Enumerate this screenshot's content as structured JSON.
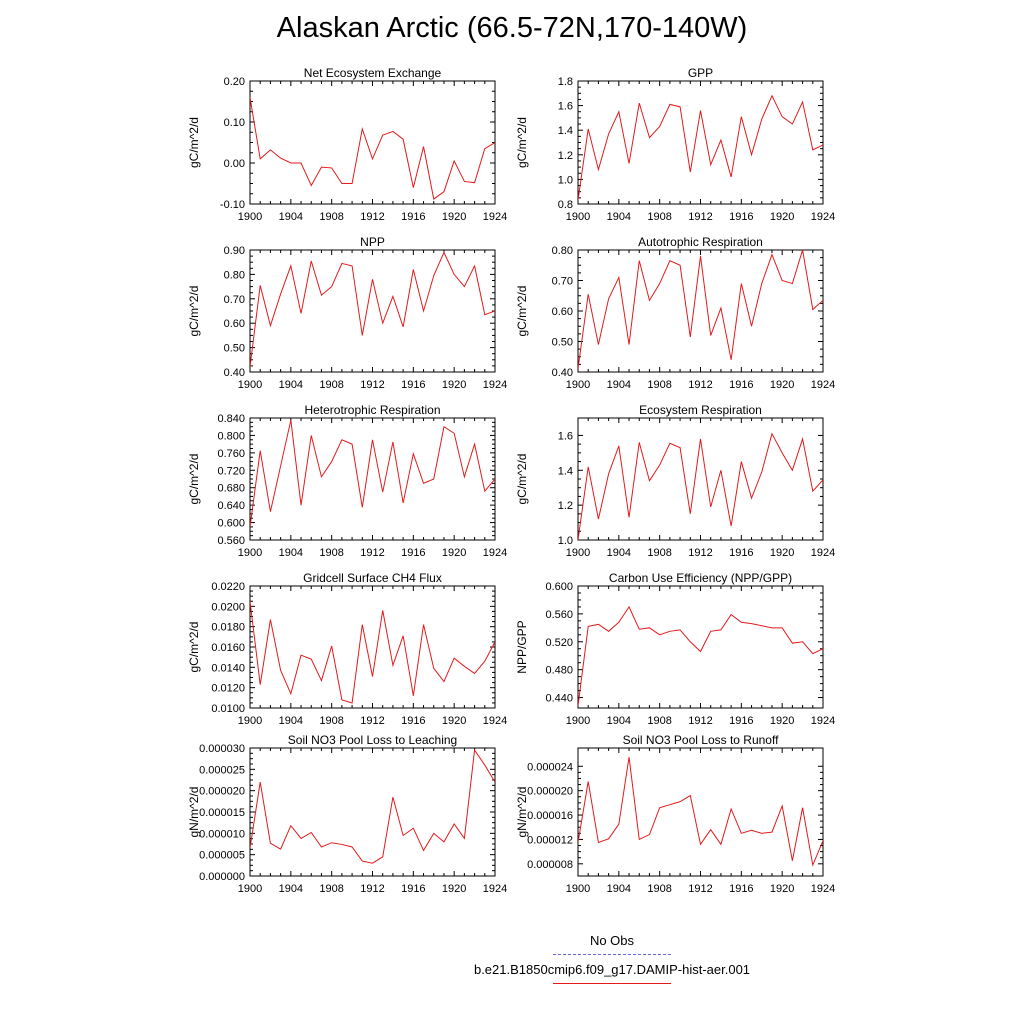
{
  "page": {
    "title": "Alaskan Arctic (66.5-72N,170-140W)"
  },
  "colors": {
    "series": "#e41a1c",
    "obs": "#6a6adc",
    "axis": "#000000"
  },
  "legend": {
    "obs_label": "No Obs",
    "model_label": "b.e21.B1850cmip6.f09_g17.DAMIP-hist-aer.001"
  },
  "chart_data": [
    {
      "type": "line",
      "title": "Net Ecosystem Exchange",
      "xlabel": "",
      "ylabel": "gC/m^2/d",
      "xlim": [
        1900,
        1924
      ],
      "ylim": [
        -0.1,
        0.2
      ],
      "xticks": [
        1900,
        1904,
        1908,
        1912,
        1916,
        1920,
        1924
      ],
      "yticks": [
        -0.1,
        0.0,
        0.1,
        0.2
      ],
      "ytick_labels": [
        "-0.10",
        "0.00",
        "0.10",
        "0.20"
      ],
      "series": [
        {
          "x": [
            1900,
            1901,
            1902,
            1903,
            1904,
            1905,
            1906,
            1907,
            1908,
            1909,
            1910,
            1911,
            1912,
            1913,
            1914,
            1915,
            1916,
            1917,
            1918,
            1919,
            1920,
            1921,
            1922,
            1923,
            1924
          ],
          "values": [
            0.16,
            0.01,
            0.032,
            0.012,
            0.0,
            0.0,
            -0.055,
            -0.01,
            -0.012,
            -0.05,
            -0.05,
            0.083,
            0.01,
            0.068,
            0.077,
            0.058,
            -0.06,
            0.04,
            -0.088,
            -0.07,
            0.005,
            -0.045,
            -0.048,
            0.035,
            0.05
          ]
        }
      ]
    },
    {
      "type": "line",
      "title": "GPP",
      "xlabel": "",
      "ylabel": "gC/m^2/d",
      "xlim": [
        1900,
        1924
      ],
      "ylim": [
        0.8,
        1.8
      ],
      "xticks": [
        1900,
        1904,
        1908,
        1912,
        1916,
        1920,
        1924
      ],
      "yticks": [
        0.8,
        1.0,
        1.2,
        1.4,
        1.6,
        1.8
      ],
      "ytick_labels": [
        "0.8",
        "1.0",
        "1.2",
        "1.4",
        "1.6",
        "1.8"
      ],
      "series": [
        {
          "x": [
            1900,
            1901,
            1902,
            1903,
            1904,
            1905,
            1906,
            1907,
            1908,
            1909,
            1910,
            1911,
            1912,
            1913,
            1914,
            1915,
            1916,
            1917,
            1918,
            1919,
            1920,
            1921,
            1922,
            1923,
            1924
          ],
          "values": [
            0.83,
            1.41,
            1.08,
            1.37,
            1.55,
            1.13,
            1.62,
            1.34,
            1.43,
            1.61,
            1.59,
            1.06,
            1.56,
            1.12,
            1.32,
            1.02,
            1.51,
            1.2,
            1.49,
            1.68,
            1.51,
            1.45,
            1.63,
            1.24,
            1.28
          ]
        }
      ]
    },
    {
      "type": "line",
      "title": "NPP",
      "xlabel": "",
      "ylabel": "gC/m^2/d",
      "xlim": [
        1900,
        1924
      ],
      "ylim": [
        0.4,
        0.9
      ],
      "xticks": [
        1900,
        1904,
        1908,
        1912,
        1916,
        1920,
        1924
      ],
      "yticks": [
        0.4,
        0.5,
        0.6,
        0.7,
        0.8,
        0.9
      ],
      "ytick_labels": [
        "0.40",
        "0.50",
        "0.60",
        "0.70",
        "0.80",
        "0.90"
      ],
      "series": [
        {
          "x": [
            1900,
            1901,
            1902,
            1903,
            1904,
            1905,
            1906,
            1907,
            1908,
            1909,
            1910,
            1911,
            1912,
            1913,
            1914,
            1915,
            1916,
            1917,
            1918,
            1919,
            1920,
            1921,
            1922,
            1923,
            1924
          ],
          "values": [
            0.42,
            0.755,
            0.59,
            0.72,
            0.835,
            0.64,
            0.855,
            0.715,
            0.75,
            0.845,
            0.835,
            0.55,
            0.78,
            0.6,
            0.71,
            0.585,
            0.82,
            0.65,
            0.795,
            0.89,
            0.8,
            0.75,
            0.835,
            0.635,
            0.65
          ]
        }
      ]
    },
    {
      "type": "line",
      "title": "Autotrophic Respiration",
      "xlabel": "",
      "ylabel": "gC/m^2/d",
      "xlim": [
        1900,
        1924
      ],
      "ylim": [
        0.4,
        0.8
      ],
      "xticks": [
        1900,
        1904,
        1908,
        1912,
        1916,
        1920,
        1924
      ],
      "yticks": [
        0.4,
        0.5,
        0.6,
        0.7,
        0.8
      ],
      "ytick_labels": [
        "0.40",
        "0.50",
        "0.60",
        "0.70",
        "0.80"
      ],
      "series": [
        {
          "x": [
            1900,
            1901,
            1902,
            1903,
            1904,
            1905,
            1906,
            1907,
            1908,
            1909,
            1910,
            1911,
            1912,
            1913,
            1914,
            1915,
            1916,
            1917,
            1918,
            1919,
            1920,
            1921,
            1922,
            1923,
            1924
          ],
          "values": [
            0.41,
            0.655,
            0.49,
            0.64,
            0.71,
            0.49,
            0.765,
            0.635,
            0.69,
            0.765,
            0.75,
            0.515,
            0.78,
            0.52,
            0.61,
            0.44,
            0.69,
            0.55,
            0.69,
            0.785,
            0.7,
            0.69,
            0.8,
            0.605,
            0.635
          ]
        }
      ]
    },
    {
      "type": "line",
      "title": "Heterotrophic Respiration",
      "xlabel": "",
      "ylabel": "gC/m^2/d",
      "xlim": [
        1900,
        1924
      ],
      "ylim": [
        0.56,
        0.84
      ],
      "xticks": [
        1900,
        1904,
        1908,
        1912,
        1916,
        1920,
        1924
      ],
      "yticks": [
        0.56,
        0.6,
        0.64,
        0.68,
        0.72,
        0.76,
        0.8,
        0.84
      ],
      "ytick_labels": [
        "0.560",
        "0.600",
        "0.640",
        "0.680",
        "0.720",
        "0.760",
        "0.800",
        "0.840"
      ],
      "series": [
        {
          "x": [
            1900,
            1901,
            1902,
            1903,
            1904,
            1905,
            1906,
            1907,
            1908,
            1909,
            1910,
            1911,
            1912,
            1913,
            1914,
            1915,
            1916,
            1917,
            1918,
            1919,
            1920,
            1921,
            1922,
            1923,
            1924
          ],
          "values": [
            0.59,
            0.765,
            0.625,
            0.73,
            0.835,
            0.64,
            0.8,
            0.705,
            0.74,
            0.79,
            0.78,
            0.635,
            0.79,
            0.67,
            0.785,
            0.645,
            0.758,
            0.69,
            0.7,
            0.82,
            0.805,
            0.705,
            0.78,
            0.672,
            0.7
          ]
        }
      ]
    },
    {
      "type": "line",
      "title": "Ecosystem Respiration",
      "xlabel": "",
      "ylabel": "gC/m^2/d",
      "xlim": [
        1900,
        1924
      ],
      "ylim": [
        1.0,
        1.7
      ],
      "xticks": [
        1900,
        1904,
        1908,
        1912,
        1916,
        1920,
        1924
      ],
      "yticks": [
        1.0,
        1.2,
        1.4,
        1.6
      ],
      "ytick_labels": [
        "1.0",
        "1.2",
        "1.4",
        "1.6"
      ],
      "series": [
        {
          "x": [
            1900,
            1901,
            1902,
            1903,
            1904,
            1905,
            1906,
            1907,
            1908,
            1909,
            1910,
            1911,
            1912,
            1913,
            1914,
            1915,
            1916,
            1917,
            1918,
            1919,
            1920,
            1921,
            1922,
            1923,
            1924
          ],
          "values": [
            1.0,
            1.42,
            1.12,
            1.38,
            1.54,
            1.13,
            1.56,
            1.34,
            1.43,
            1.555,
            1.53,
            1.15,
            1.58,
            1.19,
            1.4,
            1.08,
            1.45,
            1.24,
            1.39,
            1.61,
            1.5,
            1.4,
            1.58,
            1.28,
            1.345
          ]
        }
      ]
    },
    {
      "type": "line",
      "title": "Gridcell Surface CH4 Flux",
      "xlabel": "",
      "ylabel": "gC/m^2/d",
      "xlim": [
        1900,
        1924
      ],
      "ylim": [
        0.01,
        0.022
      ],
      "xticks": [
        1900,
        1904,
        1908,
        1912,
        1916,
        1920,
        1924
      ],
      "yticks": [
        0.01,
        0.012,
        0.014,
        0.016,
        0.018,
        0.02,
        0.022
      ],
      "ytick_labels": [
        "0.0100",
        "0.0120",
        "0.0140",
        "0.0160",
        "0.0180",
        "0.0200",
        "0.0220"
      ],
      "series": [
        {
          "x": [
            1900,
            1901,
            1902,
            1903,
            1904,
            1905,
            1906,
            1907,
            1908,
            1909,
            1910,
            1911,
            1912,
            1913,
            1914,
            1915,
            1916,
            1917,
            1918,
            1919,
            1920,
            1921,
            1922,
            1923,
            1924
          ],
          "values": [
            0.0205,
            0.0123,
            0.0187,
            0.0137,
            0.0114,
            0.0152,
            0.0148,
            0.0127,
            0.0161,
            0.0108,
            0.0105,
            0.0182,
            0.0131,
            0.0196,
            0.0142,
            0.0171,
            0.0112,
            0.0182,
            0.0139,
            0.0126,
            0.0149,
            0.0141,
            0.0134,
            0.0146,
            0.0165
          ]
        }
      ]
    },
    {
      "type": "line",
      "title": "Carbon Use Efficiency (NPP/GPP)",
      "xlabel": "",
      "ylabel": "NPP/GPP",
      "xlim": [
        1900,
        1924
      ],
      "ylim": [
        0.425,
        0.6
      ],
      "xticks": [
        1900,
        1904,
        1908,
        1912,
        1916,
        1920,
        1924
      ],
      "yticks": [
        0.44,
        0.48,
        0.52,
        0.56,
        0.6
      ],
      "ytick_labels": [
        "0.440",
        "0.480",
        "0.520",
        "0.560",
        "0.600"
      ],
      "series": [
        {
          "x": [
            1900,
            1901,
            1902,
            1903,
            1904,
            1905,
            1906,
            1907,
            1908,
            1909,
            1910,
            1911,
            1912,
            1913,
            1914,
            1915,
            1916,
            1917,
            1918,
            1919,
            1920,
            1921,
            1922,
            1923,
            1924
          ],
          "values": [
            0.428,
            0.542,
            0.545,
            0.535,
            0.548,
            0.57,
            0.538,
            0.54,
            0.53,
            0.535,
            0.537,
            0.52,
            0.506,
            0.535,
            0.537,
            0.559,
            0.548,
            0.546,
            0.543,
            0.54,
            0.54,
            0.518,
            0.52,
            0.503,
            0.51
          ]
        }
      ]
    },
    {
      "type": "line",
      "title": "Soil NO3 Pool Loss to Leaching",
      "xlabel": "",
      "ylabel": "gN/m^2/d",
      "xlim": [
        1900,
        1924
      ],
      "ylim": [
        0.0,
        3e-05
      ],
      "xticks": [
        1900,
        1904,
        1908,
        1912,
        1916,
        1920,
        1924
      ],
      "yticks": [
        0.0,
        5e-06,
        1e-05,
        1.5e-05,
        2e-05,
        2.5e-05,
        3e-05
      ],
      "ytick_labels": [
        "0.000000",
        "0.000005",
        "0.000010",
        "0.000015",
        "0.000020",
        "0.000025",
        "0.000030"
      ],
      "series": [
        {
          "x": [
            1900,
            1901,
            1902,
            1903,
            1904,
            1905,
            1906,
            1907,
            1908,
            1909,
            1910,
            1911,
            1912,
            1913,
            1914,
            1915,
            1916,
            1917,
            1918,
            1919,
            1920,
            1921,
            1922,
            1923,
            1924
          ],
          "values": [
            6.5e-06,
            2.2e-05,
            7.7e-06,
            6.3e-06,
            1.18e-05,
            8.8e-06,
            1.02e-05,
            6.8e-06,
            7.8e-06,
            7.4e-06,
            6.8e-06,
            3.5e-06,
            3e-06,
            4.5e-06,
            1.85e-05,
            9.5e-06,
            1.12e-05,
            6e-06,
            1e-05,
            8e-06,
            1.22e-05,
            8.8e-06,
            2.95e-05,
            2.6e-05,
            2.2e-05
          ]
        }
      ]
    },
    {
      "type": "line",
      "title": "Soil NO3 Pool Loss to Runoff",
      "xlabel": "",
      "ylabel": "gN/m^2/d",
      "xlim": [
        1900,
        1924
      ],
      "ylim": [
        6e-06,
        2.7e-05
      ],
      "xticks": [
        1900,
        1904,
        1908,
        1912,
        1916,
        1920,
        1924
      ],
      "yticks": [
        8e-06,
        1.2e-05,
        1.6e-05,
        2e-05,
        2.4e-05
      ],
      "ytick_labels": [
        "0.000008",
        "0.000012",
        "0.000016",
        "0.000020",
        "0.000024"
      ],
      "series": [
        {
          "x": [
            1900,
            1901,
            1902,
            1903,
            1904,
            1905,
            1906,
            1907,
            1908,
            1909,
            1910,
            1911,
            1912,
            1913,
            1914,
            1915,
            1916,
            1917,
            1918,
            1919,
            1920,
            1921,
            1922,
            1923,
            1924
          ],
          "values": [
            1.15e-05,
            2.15e-05,
            1.15e-05,
            1.21e-05,
            1.45e-05,
            2.55e-05,
            1.2e-05,
            1.28e-05,
            1.72e-05,
            1.77e-05,
            1.82e-05,
            1.92e-05,
            1.12e-05,
            1.36e-05,
            1.12e-05,
            1.7e-05,
            1.3e-05,
            1.35e-05,
            1.3e-05,
            1.32e-05,
            1.75e-05,
            8.5e-06,
            1.72e-05,
            7.8e-06,
            1.18e-05
          ]
        }
      ]
    }
  ]
}
